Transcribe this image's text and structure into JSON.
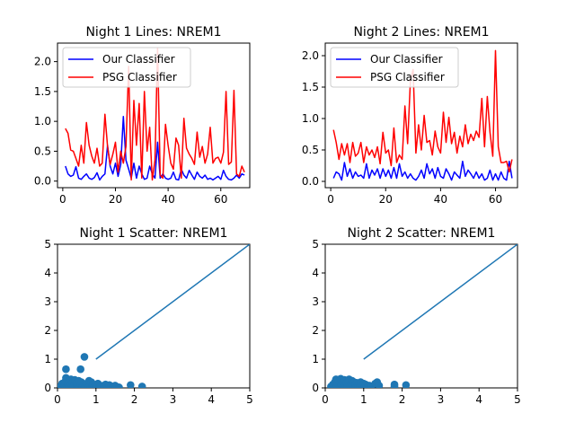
{
  "figure": {
    "background": "#ffffff"
  },
  "chart_data": [
    {
      "id": "p1",
      "type": "line",
      "title": "Night 1 Lines: NREM1",
      "xlim": [
        -2,
        71
      ],
      "ylim": [
        -0.11,
        2.31
      ],
      "xticks": [
        0,
        20,
        40,
        60
      ],
      "xtick_labels": [
        "0",
        "20",
        "40",
        "60"
      ],
      "yticks": [
        0.0,
        0.5,
        1.0,
        1.5,
        2.0
      ],
      "ytick_labels": [
        "0.0",
        "0.5",
        "1.0",
        "1.5",
        "2.0"
      ],
      "legend": {
        "position": "top-left",
        "entries": [
          "Our Classifier",
          "PSG Classifier"
        ]
      },
      "series": [
        {
          "name": "Our Classifier",
          "color": "#0000ff",
          "x": [
            1,
            2,
            3,
            4,
            5,
            6,
            7,
            8,
            9,
            10,
            11,
            12,
            13,
            14,
            15,
            16,
            17,
            18,
            19,
            20,
            21,
            22,
            23,
            24,
            25,
            26,
            27,
            28,
            29,
            30,
            31,
            32,
            33,
            34,
            35,
            36,
            37,
            38,
            39,
            40,
            41,
            42,
            43,
            44,
            45,
            46,
            47,
            48,
            49,
            50,
            51,
            52,
            53,
            54,
            55,
            56,
            57,
            58,
            59,
            60,
            61,
            62,
            63,
            64,
            65,
            66,
            67,
            68,
            69
          ],
          "values": [
            0.25,
            0.12,
            0.08,
            0.1,
            0.24,
            0.05,
            0.03,
            0.08,
            0.12,
            0.05,
            0.03,
            0.06,
            0.14,
            0.02,
            0.08,
            0.12,
            0.6,
            0.25,
            0.12,
            0.3,
            0.08,
            0.28,
            1.08,
            0.35,
            0.2,
            0.05,
            0.3,
            0.05,
            0.25,
            0.12,
            0.03,
            0.05,
            0.25,
            0.12,
            0.05,
            0.65,
            0.05,
            0.12,
            0.05,
            0.03,
            0.05,
            0.15,
            0.03,
            0.02,
            0.2,
            0.1,
            0.05,
            0.18,
            0.1,
            0.03,
            0.15,
            0.08,
            0.05,
            0.1,
            0.03,
            0.05,
            0.02,
            0.05,
            0.08,
            0.03,
            0.18,
            0.08,
            0.03,
            0.02,
            0.05,
            0.1,
            0.05,
            0.12,
            0.1
          ]
        },
        {
          "name": "PSG Classifier",
          "color": "#ff0000",
          "x": [
            1,
            2,
            3,
            4,
            5,
            6,
            7,
            8,
            9,
            10,
            11,
            12,
            13,
            14,
            15,
            16,
            17,
            18,
            19,
            20,
            21,
            22,
            23,
            24,
            25,
            26,
            27,
            28,
            29,
            30,
            31,
            32,
            33,
            34,
            35,
            36,
            37,
            38,
            39,
            40,
            41,
            42,
            43,
            44,
            45,
            46,
            47,
            48,
            49,
            50,
            51,
            52,
            53,
            54,
            55,
            56,
            57,
            58,
            59,
            60,
            61,
            62,
            63,
            64,
            65,
            66,
            67,
            68,
            69
          ],
          "values": [
            0.88,
            0.8,
            0.52,
            0.5,
            0.38,
            0.25,
            0.6,
            0.3,
            0.98,
            0.6,
            0.42,
            0.3,
            0.55,
            0.25,
            0.3,
            1.12,
            0.58,
            0.28,
            0.45,
            0.65,
            0.15,
            0.5,
            0.3,
            0.58,
            1.92,
            0.02,
            1.35,
            0.6,
            1.3,
            0.05,
            1.5,
            0.5,
            0.9,
            0.02,
            0.35,
            2.22,
            0.1,
            0.05,
            0.95,
            0.6,
            0.3,
            0.2,
            0.72,
            0.6,
            0.05,
            1.05,
            0.55,
            0.45,
            0.38,
            0.28,
            0.82,
            0.4,
            0.58,
            0.3,
            0.45,
            0.9,
            0.3,
            0.38,
            0.4,
            0.3,
            0.48,
            1.5,
            0.28,
            0.32,
            1.52,
            0.12,
            0.08,
            0.25,
            0.15
          ]
        }
      ]
    },
    {
      "id": "p2",
      "type": "line",
      "title": "Night 2 Lines: NREM1",
      "xlim": [
        -2,
        68
      ],
      "ylim": [
        -0.1,
        2.2
      ],
      "xticks": [
        0,
        20,
        40,
        60
      ],
      "xtick_labels": [
        "0",
        "20",
        "40",
        "60"
      ],
      "yticks": [
        0.0,
        0.5,
        1.0,
        1.5,
        2.0
      ],
      "ytick_labels": [
        "0.0",
        "0.5",
        "1.0",
        "1.5",
        "2.0"
      ],
      "legend": {
        "position": "top-left",
        "entries": [
          "Our Classifier",
          "PSG Classifier"
        ]
      },
      "series": [
        {
          "name": "Our Classifier",
          "color": "#0000ff",
          "x": [
            1,
            2,
            3,
            4,
            5,
            6,
            7,
            8,
            9,
            10,
            11,
            12,
            13,
            14,
            15,
            16,
            17,
            18,
            19,
            20,
            21,
            22,
            23,
            24,
            25,
            26,
            27,
            28,
            29,
            30,
            31,
            32,
            33,
            34,
            35,
            36,
            37,
            38,
            39,
            40,
            41,
            42,
            43,
            44,
            45,
            46,
            47,
            48,
            49,
            50,
            51,
            52,
            53,
            54,
            55,
            56,
            57,
            58,
            59,
            60,
            61,
            62,
            63,
            64,
            65,
            66
          ],
          "values": [
            0.05,
            0.15,
            0.12,
            0.02,
            0.3,
            0.08,
            0.2,
            0.05,
            0.15,
            0.08,
            0.1,
            0.05,
            0.28,
            0.05,
            0.18,
            0.1,
            0.2,
            0.05,
            0.2,
            0.08,
            0.18,
            0.05,
            0.22,
            0.05,
            0.28,
            0.08,
            0.15,
            0.05,
            0.12,
            0.05,
            0.02,
            0.08,
            0.18,
            0.05,
            0.28,
            0.12,
            0.2,
            0.05,
            0.22,
            0.08,
            0.05,
            0.2,
            0.12,
            0.02,
            0.15,
            0.1,
            0.05,
            0.32,
            0.08,
            0.18,
            0.12,
            0.05,
            0.15,
            0.05,
            0.12,
            0.02,
            0.05,
            0.18,
            0.02,
            0.12,
            0.02,
            0.15,
            0.05,
            0.02,
            0.32,
            0.05
          ]
        },
        {
          "name": "PSG Classifier",
          "color": "#ff0000",
          "x": [
            1,
            2,
            3,
            4,
            5,
            6,
            7,
            8,
            9,
            10,
            11,
            12,
            13,
            14,
            15,
            16,
            17,
            18,
            19,
            20,
            21,
            22,
            23,
            24,
            25,
            26,
            27,
            28,
            29,
            30,
            31,
            32,
            33,
            34,
            35,
            36,
            37,
            38,
            39,
            40,
            41,
            42,
            43,
            44,
            45,
            46,
            47,
            48,
            49,
            50,
            51,
            52,
            53,
            54,
            55,
            56,
            57,
            58,
            59,
            60,
            61,
            62,
            63,
            64,
            65,
            66
          ],
          "values": [
            0.82,
            0.62,
            0.35,
            0.6,
            0.42,
            0.6,
            0.3,
            0.62,
            0.4,
            0.45,
            0.62,
            0.3,
            0.55,
            0.42,
            0.5,
            0.38,
            0.55,
            0.28,
            0.78,
            0.45,
            0.5,
            0.25,
            0.85,
            0.3,
            0.42,
            0.35,
            1.2,
            0.6,
            1.6,
            1.78,
            0.45,
            0.9,
            0.5,
            1.05,
            0.62,
            0.65,
            0.42,
            0.8,
            0.55,
            0.45,
            1.1,
            0.62,
            1.02,
            0.6,
            0.78,
            0.45,
            0.72,
            0.55,
            0.9,
            0.6,
            0.75,
            0.65,
            0.8,
            0.7,
            1.32,
            0.55,
            1.35,
            0.78,
            0.4,
            2.08,
            0.55,
            0.3,
            0.3,
            0.32,
            0.15,
            0.35
          ]
        }
      ]
    },
    {
      "id": "p3",
      "type": "scatter",
      "title": "Night 1 Scatter: NREM1",
      "xlim": [
        0,
        5
      ],
      "ylim": [
        0,
        5
      ],
      "xticks": [
        0,
        1,
        2,
        3,
        4,
        5
      ],
      "xtick_labels": [
        "0",
        "1",
        "2",
        "3",
        "4",
        "5"
      ],
      "yticks": [
        0,
        1,
        2,
        3,
        4,
        5
      ],
      "ytick_labels": [
        "0",
        "1",
        "2",
        "3",
        "4",
        "5"
      ],
      "color": "#1f77b4",
      "reference_line": {
        "x": [
          1,
          5
        ],
        "y": [
          1,
          5
        ]
      },
      "points": [
        [
          0.05,
          0.02
        ],
        [
          0.1,
          0.05
        ],
        [
          0.12,
          0.15
        ],
        [
          0.15,
          0.02
        ],
        [
          0.18,
          0.1
        ],
        [
          0.2,
          0.22
        ],
        [
          0.22,
          0.35
        ],
        [
          0.22,
          0.65
        ],
        [
          0.25,
          0.05
        ],
        [
          0.28,
          0.12
        ],
        [
          0.3,
          0.25
        ],
        [
          0.3,
          0.03
        ],
        [
          0.32,
          0.18
        ],
        [
          0.35,
          0.3
        ],
        [
          0.38,
          0.08
        ],
        [
          0.4,
          0.2
        ],
        [
          0.42,
          0.05
        ],
        [
          0.45,
          0.28
        ],
        [
          0.48,
          0.12
        ],
        [
          0.5,
          0.02
        ],
        [
          0.5,
          0.18
        ],
        [
          0.52,
          0.08
        ],
        [
          0.55,
          0.25
        ],
        [
          0.58,
          0.05
        ],
        [
          0.6,
          0.65
        ],
        [
          0.6,
          0.12
        ],
        [
          0.62,
          0.2
        ],
        [
          0.65,
          0.03
        ],
        [
          0.68,
          0.1
        ],
        [
          0.7,
          1.08
        ],
        [
          0.72,
          0.05
        ],
        [
          0.75,
          0.15
        ],
        [
          0.8,
          0.02
        ],
        [
          0.82,
          0.25
        ],
        [
          0.85,
          0.08
        ],
        [
          0.88,
          0.2
        ],
        [
          0.9,
          0.05
        ],
        [
          0.92,
          0.12
        ],
        [
          0.95,
          0.03
        ],
        [
          1.0,
          0.1
        ],
        [
          1.02,
          0.05
        ],
        [
          1.05,
          0.15
        ],
        [
          1.1,
          0.02
        ],
        [
          1.12,
          0.08
        ],
        [
          1.2,
          0.05
        ],
        [
          1.25,
          0.12
        ],
        [
          1.3,
          0.03
        ],
        [
          1.35,
          0.1
        ],
        [
          1.45,
          0.05
        ],
        [
          1.5,
          0.08
        ],
        [
          1.6,
          0.02
        ],
        [
          1.9,
          0.1
        ],
        [
          2.2,
          0.05
        ]
      ]
    },
    {
      "id": "p4",
      "type": "scatter",
      "title": "Night 2 Scatter: NREM1",
      "xlim": [
        0,
        5
      ],
      "ylim": [
        0,
        5
      ],
      "xticks": [
        0,
        1,
        2,
        3,
        4,
        5
      ],
      "xtick_labels": [
        "0",
        "1",
        "2",
        "3",
        "4",
        "5"
      ],
      "yticks": [
        0,
        1,
        2,
        3,
        4,
        5
      ],
      "ytick_labels": [
        "0",
        "1",
        "2",
        "3",
        "4",
        "5"
      ],
      "color": "#1f77b4",
      "reference_line": {
        "x": [
          1,
          5
        ],
        "y": [
          1,
          5
        ]
      },
      "points": [
        [
          0.15,
          0.05
        ],
        [
          0.2,
          0.12
        ],
        [
          0.25,
          0.2
        ],
        [
          0.28,
          0.3
        ],
        [
          0.3,
          0.08
        ],
        [
          0.32,
          0.15
        ],
        [
          0.35,
          0.25
        ],
        [
          0.38,
          0.05
        ],
        [
          0.4,
          0.32
        ],
        [
          0.42,
          0.12
        ],
        [
          0.45,
          0.2
        ],
        [
          0.48,
          0.02
        ],
        [
          0.5,
          0.28
        ],
        [
          0.52,
          0.1
        ],
        [
          0.55,
          0.18
        ],
        [
          0.58,
          0.05
        ],
        [
          0.6,
          0.22
        ],
        [
          0.62,
          0.3
        ],
        [
          0.65,
          0.08
        ],
        [
          0.68,
          0.15
        ],
        [
          0.7,
          0.25
        ],
        [
          0.72,
          0.05
        ],
        [
          0.75,
          0.2
        ],
        [
          0.78,
          0.12
        ],
        [
          0.8,
          0.02
        ],
        [
          0.82,
          0.18
        ],
        [
          0.85,
          0.08
        ],
        [
          0.88,
          0.15
        ],
        [
          0.9,
          0.05
        ],
        [
          0.92,
          0.2
        ],
        [
          0.95,
          0.1
        ],
        [
          1.0,
          0.15
        ],
        [
          1.02,
          0.05
        ],
        [
          1.05,
          0.12
        ],
        [
          1.1,
          0.02
        ],
        [
          1.15,
          0.08
        ],
        [
          1.2,
          0.05
        ],
        [
          1.3,
          0.15
        ],
        [
          1.35,
          0.2
        ],
        [
          1.4,
          0.08
        ],
        [
          1.8,
          0.12
        ],
        [
          1.8,
          0.05
        ],
        [
          2.1,
          0.1
        ]
      ]
    }
  ]
}
